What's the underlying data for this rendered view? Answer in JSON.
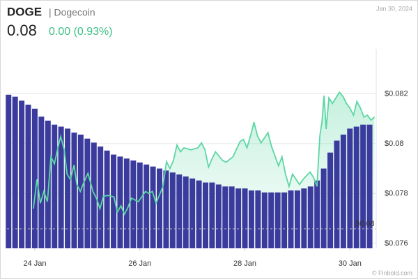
{
  "header": {
    "symbol": "DOGE",
    "name": "| Dogecoin",
    "date": "Jan 30, 2024",
    "price": "0.08",
    "change": "0.00 (0.93%)"
  },
  "chart_data": {
    "type": "line",
    "color": "#5cd6a4",
    "x": [
      23.973,
      24.04,
      24.107,
      24.173,
      24.24,
      24.307,
      24.373,
      24.44,
      24.493,
      24.56,
      24.613,
      24.68,
      24.747,
      24.8,
      24.867,
      24.933,
      25.013,
      25.107,
      25.173,
      25.24,
      25.307,
      25.4,
      25.507,
      25.573,
      25.64,
      25.707,
      25.773,
      25.84,
      25.973,
      26.107,
      26.173,
      26.24,
      26.307,
      26.373,
      26.44,
      26.507,
      26.573,
      26.64,
      26.707,
      26.773,
      26.84,
      26.973,
      27.107,
      27.173,
      27.24,
      27.307,
      27.373,
      27.44,
      27.573,
      27.64,
      27.773,
      27.907,
      27.973,
      28.04,
      28.107,
      28.173,
      28.24,
      28.307,
      28.44,
      28.507,
      28.64,
      28.707,
      28.773,
      28.84,
      28.907,
      29.04,
      29.107,
      29.24,
      29.307,
      29.373,
      29.427,
      29.467,
      29.507,
      29.547,
      29.6,
      29.667,
      29.733,
      29.8,
      29.867,
      29.933,
      30.0,
      30.067,
      30.133,
      30.2,
      30.267,
      30.333,
      30.4,
      30.467
    ],
    "values": [
      0.07739,
      0.07856,
      0.07761,
      0.07808,
      0.07767,
      0.07947,
      0.07919,
      0.07983,
      0.08028,
      0.07975,
      0.07878,
      0.07856,
      0.07914,
      0.07836,
      0.07808,
      0.07844,
      0.07881,
      0.07808,
      0.07781,
      0.07739,
      0.07789,
      0.07792,
      0.07786,
      0.07725,
      0.0775,
      0.07717,
      0.07744,
      0.07781,
      0.07767,
      0.07808,
      0.078,
      0.07808,
      0.07761,
      0.07794,
      0.07828,
      0.07928,
      0.079,
      0.07933,
      0.07994,
      0.07967,
      0.07983,
      0.07975,
      0.07983,
      0.08003,
      0.07975,
      0.07906,
      0.07939,
      0.07967,
      0.07933,
      0.07925,
      0.07947,
      0.08008,
      0.08017,
      0.07983,
      0.08031,
      0.08086,
      0.08031,
      0.08003,
      0.08044,
      0.07989,
      0.07911,
      0.07947,
      0.07878,
      0.07828,
      0.07878,
      0.07836,
      0.07856,
      0.07886,
      0.07864,
      0.07828,
      0.08031,
      0.08086,
      0.08192,
      0.08058,
      0.08183,
      0.08161,
      0.08183,
      0.08206,
      0.08189,
      0.08161,
      0.08142,
      0.08114,
      0.08169,
      0.08142,
      0.08106,
      0.08114,
      0.08094,
      0.08106
    ],
    "xlim": [
      23.47,
      30.5
    ],
    "xticks": [
      {
        "value": 24,
        "label": "24 Jan"
      },
      {
        "value": 26,
        "label": "26 Jan"
      },
      {
        "value": 28,
        "label": "28 Jan"
      },
      {
        "value": 30,
        "label": "30 Jan"
      }
    ],
    "ylim": [
      0.0758,
      0.0838
    ],
    "yticks": [
      {
        "value": 0.076,
        "label": "$0.076"
      },
      {
        "value": 0.078,
        "label": "$0.078"
      },
      {
        "value": 0.08,
        "label": "$0.08"
      },
      {
        "value": 0.082,
        "label": "$0.082"
      }
    ],
    "grid": true,
    "volume": {
      "color": "#3b3b9e",
      "x": [
        23.5,
        23.625,
        23.75,
        23.875,
        24,
        24.125,
        24.25,
        24.375,
        24.5,
        24.625,
        24.75,
        24.875,
        25,
        25.125,
        25.25,
        25.375,
        25.5,
        25.625,
        25.75,
        25.875,
        26,
        26.125,
        26.25,
        26.375,
        26.5,
        26.625,
        26.75,
        26.875,
        27,
        27.125,
        27.25,
        27.375,
        27.5,
        27.625,
        27.75,
        27.875,
        28,
        28.125,
        28.25,
        28.375,
        28.5,
        28.625,
        28.75,
        28.875,
        29,
        29.125,
        29.25,
        29.375,
        29.5,
        29.625,
        29.75,
        29.875,
        30,
        30.125,
        30.25,
        30.375
      ],
      "values": [
        77,
        76,
        74,
        72,
        70,
        66,
        64,
        62,
        61,
        60,
        58,
        57,
        55,
        53,
        51,
        49,
        47,
        46,
        45,
        44,
        43,
        42,
        41,
        40,
        39,
        38,
        37,
        36,
        35,
        34,
        33,
        33,
        32,
        31,
        31,
        30,
        30,
        29,
        29,
        28,
        28,
        28,
        28,
        29,
        29,
        30,
        31,
        34,
        40,
        48,
        54,
        57,
        60,
        61,
        62,
        62
      ]
    },
    "y2lim": [
      0,
      100
    ],
    "last_label": "$0.08"
  },
  "credit": "© Finbold.com"
}
